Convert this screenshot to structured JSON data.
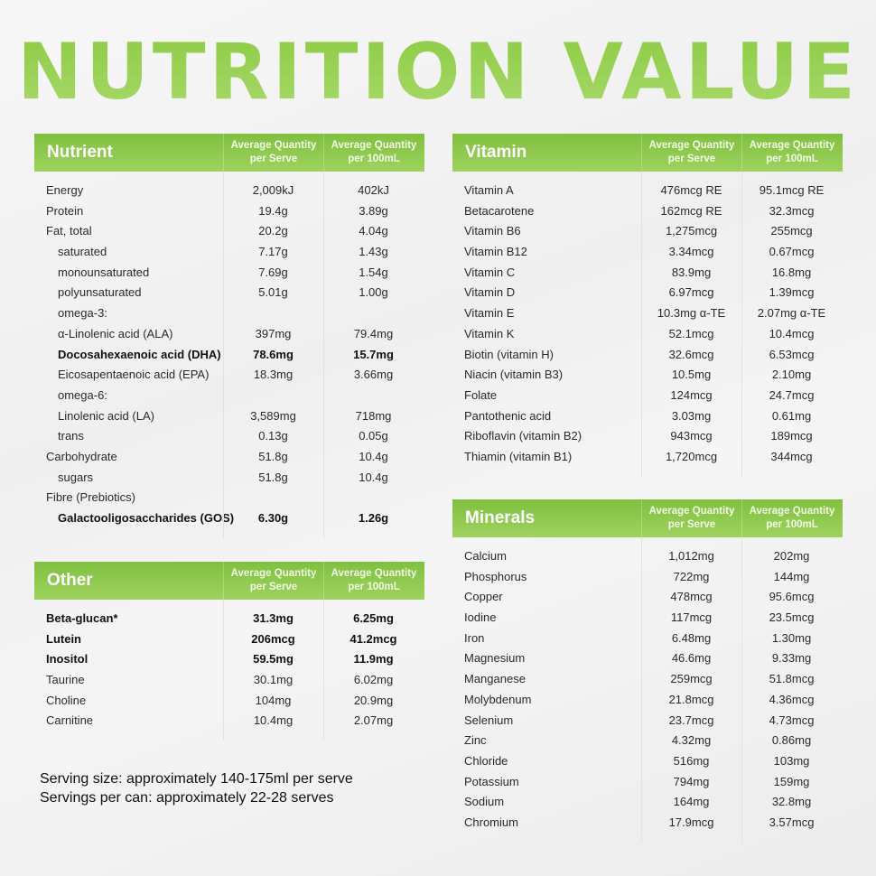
{
  "title": "NUTRITION VALUE",
  "colors": {
    "accent": "#8cc84b",
    "header_bg": "#8fc94f",
    "text": "#2a2a2a"
  },
  "tables": {
    "nutrient": {
      "header": {
        "name": "Nutrient",
        "col1": "Average Quantity per Serve",
        "col2": "Average Quantity per 100mL"
      },
      "rows": [
        {
          "name": "Energy",
          "serve": "2,009kJ",
          "per100": "402kJ"
        },
        {
          "name": "Protein",
          "serve": "19.4g",
          "per100": "3.89g"
        },
        {
          "name": "Fat, total",
          "serve": "20.2g",
          "per100": "4.04g"
        },
        {
          "name": "saturated",
          "serve": "7.17g",
          "per100": "1.43g",
          "sub": true
        },
        {
          "name": "monounsaturated",
          "serve": "7.69g",
          "per100": "1.54g",
          "sub": true
        },
        {
          "name": "polyunsaturated",
          "serve": "5.01g",
          "per100": "1.00g",
          "sub": true
        },
        {
          "name": "omega-3:",
          "serve": "",
          "per100": "",
          "sub": true
        },
        {
          "name": "α-Linolenic acid (ALA)",
          "serve": "397mg",
          "per100": "79.4mg",
          "sub": true
        },
        {
          "name": "Docosahexaenoic acid (DHA)",
          "serve": "78.6mg",
          "per100": "15.7mg",
          "sub": true,
          "bold": true
        },
        {
          "name": "Eicosapentaenoic acid (EPA)",
          "serve": "18.3mg",
          "per100": "3.66mg",
          "sub": true
        },
        {
          "name": "omega-6:",
          "serve": "",
          "per100": "",
          "sub": true
        },
        {
          "name": "Linolenic acid (LA)",
          "serve": "3,589mg",
          "per100": "718mg",
          "sub": true
        },
        {
          "name": "trans",
          "serve": "0.13g",
          "per100": "0.05g",
          "sub": true
        },
        {
          "name": "Carbohydrate",
          "serve": "51.8g",
          "per100": "10.4g"
        },
        {
          "name": "sugars",
          "serve": "51.8g",
          "per100": "10.4g",
          "sub": true
        },
        {
          "name": "Fibre (Prebiotics)",
          "serve": "",
          "per100": ""
        },
        {
          "name": "Galactooligosaccharides (GOS)",
          "serve": "6.30g",
          "per100": "1.26g",
          "sub": true,
          "bold": true
        }
      ]
    },
    "other": {
      "header": {
        "name": "Other",
        "col1": "Average Quantity per Serve",
        "col2": "Average Quantity per 100mL"
      },
      "rows": [
        {
          "name": "Beta-glucan*",
          "serve": "31.3mg",
          "per100": "6.25mg",
          "bold": true
        },
        {
          "name": "Lutein",
          "serve": "206mcg",
          "per100": "41.2mcg",
          "bold": true
        },
        {
          "name": "Inositol",
          "serve": "59.5mg",
          "per100": "11.9mg",
          "bold": true
        },
        {
          "name": "Taurine",
          "serve": "30.1mg",
          "per100": "6.02mg"
        },
        {
          "name": "Choline",
          "serve": "104mg",
          "per100": "20.9mg"
        },
        {
          "name": "Carnitine",
          "serve": "10.4mg",
          "per100": "2.07mg"
        }
      ]
    },
    "vitamin": {
      "header": {
        "name": "Vitamin",
        "col1": "Average Quantity per Serve",
        "col2": "Average Quantity per 100mL"
      },
      "rows": [
        {
          "name": "Vitamin A",
          "serve": "476mcg RE",
          "per100": "95.1mcg RE"
        },
        {
          "name": "Betacarotene",
          "serve": "162mcg RE",
          "per100": "32.3mcg"
        },
        {
          "name": "Vitamin B6",
          "serve": "1,275mcg",
          "per100": "255mcg"
        },
        {
          "name": "Vitamin B12",
          "serve": "3.34mcg",
          "per100": "0.67mcg"
        },
        {
          "name": "Vitamin C",
          "serve": "83.9mg",
          "per100": "16.8mg"
        },
        {
          "name": "Vitamin D",
          "serve": "6.97mcg",
          "per100": "1.39mcg"
        },
        {
          "name": "Vitamin E",
          "serve": "10.3mg α-TE",
          "per100": "2.07mg α-TE"
        },
        {
          "name": "Vitamin K",
          "serve": "52.1mcg",
          "per100": "10.4mcg"
        },
        {
          "name": "Biotin (vitamin H)",
          "serve": "32.6mcg",
          "per100": "6.53mcg"
        },
        {
          "name": "Niacin (vitamin B3)",
          "serve": "10.5mg",
          "per100": "2.10mg"
        },
        {
          "name": "Folate",
          "serve": "124mcg",
          "per100": "24.7mcg"
        },
        {
          "name": "Pantothenic acid",
          "serve": "3.03mg",
          "per100": "0.61mg"
        },
        {
          "name": "Riboflavin (vitamin B2)",
          "serve": "943mcg",
          "per100": "189mcg"
        },
        {
          "name": "Thiamin (vitamin B1)",
          "serve": "1,720mcg",
          "per100": "344mcg"
        }
      ]
    },
    "minerals": {
      "header": {
        "name": "Minerals",
        "col1": "Average Quantity per Serve",
        "col2": "Average Quantity per 100mL"
      },
      "rows": [
        {
          "name": "Calcium",
          "serve": "1,012mg",
          "per100": "202mg"
        },
        {
          "name": "Phosphorus",
          "serve": "722mg",
          "per100": "144mg"
        },
        {
          "name": "Copper",
          "serve": "478mcg",
          "per100": "95.6mcg"
        },
        {
          "name": "Iodine",
          "serve": "117mcg",
          "per100": "23.5mcg"
        },
        {
          "name": "Iron",
          "serve": "6.48mg",
          "per100": "1.30mg"
        },
        {
          "name": "Magnesium",
          "serve": "46.6mg",
          "per100": "9.33mg"
        },
        {
          "name": "Manganese",
          "serve": "259mcg",
          "per100": "51.8mcg"
        },
        {
          "name": "Molybdenum",
          "serve": "21.8mcg",
          "per100": "4.36mcg"
        },
        {
          "name": "Selenium",
          "serve": "23.7mcg",
          "per100": "4.73mcg"
        },
        {
          "name": "Zinc",
          "serve": "4.32mg",
          "per100": "0.86mg"
        },
        {
          "name": "Chloride",
          "serve": "516mg",
          "per100": "103mg"
        },
        {
          "name": "Potassium",
          "serve": "794mg",
          "per100": "159mg"
        },
        {
          "name": "Sodium",
          "serve": "164mg",
          "per100": "32.8mg"
        },
        {
          "name": "Chromium",
          "serve": "17.9mcg",
          "per100": "3.57mcg"
        }
      ]
    }
  },
  "footer": {
    "serving_size": "Serving size: approximately 140-175ml per serve",
    "servings_per_can": "Servings per can: approximately 22-28  serves"
  }
}
